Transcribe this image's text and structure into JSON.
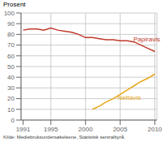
{
  "chart_data": {
    "type": "line",
    "ylabel": "Prosent",
    "source": "Kilde: Mediebruksundersøkelsene, Statistisk sentralbyrå.",
    "x": [
      1991,
      1992,
      1993,
      1994,
      1995,
      1996,
      1997,
      1998,
      1999,
      2000,
      2001,
      2002,
      2003,
      2004,
      2005,
      2006,
      2007,
      2008,
      2009,
      2010
    ],
    "series": [
      {
        "color": "#c0392b",
        "values": [
          84,
          85,
          85,
          84,
          86,
          84,
          83,
          82,
          80,
          77,
          77,
          76,
          75,
          75,
          74,
          74,
          73,
          70,
          67,
          64
        ]
      },
      {
        "color": "#e6a817",
        "values": [
          null,
          null,
          null,
          null,
          null,
          null,
          null,
          null,
          null,
          null,
          10,
          13,
          17,
          20,
          24,
          28,
          32,
          36,
          39,
          43
        ]
      }
    ],
    "annotations": [
      {
        "text": "Papiravis",
        "x": 2006.8,
        "y": 76,
        "color": "#c0392b"
      },
      {
        "text": "Nettavis",
        "x": 2004.5,
        "y": 21,
        "color": "#e6a817"
      }
    ],
    "xlim": [
      1990.7,
      2010.3
    ],
    "xticks": [
      1991,
      1995,
      2000,
      2005,
      2010
    ],
    "ylim": [
      0,
      100
    ],
    "yticks": [
      0,
      10,
      20,
      30,
      40,
      50,
      60,
      70,
      80,
      90,
      100
    ],
    "grid": true
  }
}
